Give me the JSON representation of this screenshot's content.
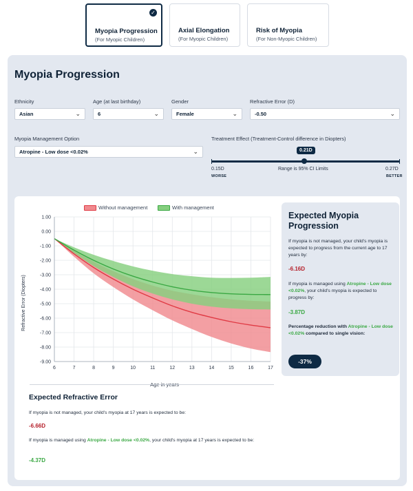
{
  "tabs": [
    {
      "title": "Myopia Progression",
      "subtitle": "(For Myopic Children)",
      "active": true
    },
    {
      "title": "Axial Elongation",
      "subtitle": "(For Myopic Children)",
      "active": false
    },
    {
      "title": "Risk of Myopia",
      "subtitle": "(For Non-Myopic Children)",
      "active": false
    }
  ],
  "panel": {
    "title": "Myopia Progression"
  },
  "fields": {
    "ethnicity": {
      "label": "Ethnicity",
      "value": "Asian"
    },
    "age": {
      "label": "Age (at last birthday)",
      "value": "6"
    },
    "gender": {
      "label": "Gender",
      "value": "Female"
    },
    "refractive_error": {
      "label": "Refractive Error (D)",
      "value": "-0.50"
    },
    "management": {
      "label": "Myopia Management Option",
      "value": "Atropine - Low dose <0.02%"
    }
  },
  "treatment_effect": {
    "label": "Treatment Effect (Treatment-Control difference in Diopters)",
    "value_label": "0.21D",
    "value": 0.21,
    "min": 0.15,
    "max": 0.27,
    "min_label": "0.15D",
    "max_label": "0.27D",
    "worse_label": "WORSE",
    "better_label": "BETTER",
    "range_text": "Range is 95% CI Limits"
  },
  "chart_data": {
    "type": "area",
    "xlabel": "Age in years",
    "ylabel": "Refractive Error (Diopters)",
    "xlim": [
      6,
      17
    ],
    "ylim": [
      -9,
      1
    ],
    "x_ticks": [
      "6",
      "7",
      "8",
      "9",
      "10",
      "11",
      "12",
      "13",
      "14",
      "15",
      "16",
      "17"
    ],
    "y_ticks": [
      "1.00",
      "0.00",
      "-1.00",
      "-2.00",
      "-3.00",
      "-4.00",
      "-5.00",
      "-6.00",
      "-7.00",
      "-8.00",
      "-9.00"
    ],
    "x": [
      6,
      7,
      8,
      9,
      10,
      11,
      12,
      13,
      14,
      15,
      16,
      17
    ],
    "series": [
      {
        "name": "Without management",
        "color": "#e03a44",
        "fill": "#f08a8f",
        "mean": [
          -0.5,
          -1.55,
          -2.5,
          -3.3,
          -4.0,
          -4.6,
          -5.15,
          -5.6,
          -5.95,
          -6.25,
          -6.48,
          -6.66
        ],
        "upper": [
          -0.5,
          -1.35,
          -2.1,
          -2.75,
          -3.3,
          -3.75,
          -4.1,
          -4.35,
          -4.55,
          -4.7,
          -4.8,
          -4.85
        ],
        "lower": [
          -0.5,
          -1.75,
          -2.9,
          -3.85,
          -4.7,
          -5.45,
          -6.15,
          -6.75,
          -7.3,
          -7.75,
          -8.1,
          -8.35
        ]
      },
      {
        "name": "With management",
        "color": "#3aa843",
        "fill": "#86cf7f",
        "mean": [
          -0.5,
          -1.3,
          -2.0,
          -2.6,
          -3.1,
          -3.5,
          -3.83,
          -4.07,
          -4.23,
          -4.32,
          -4.36,
          -4.37
        ],
        "upper": [
          -0.5,
          -1.1,
          -1.62,
          -2.05,
          -2.42,
          -2.72,
          -2.95,
          -3.1,
          -3.2,
          -3.22,
          -3.2,
          -3.15
        ],
        "lower": [
          -0.5,
          -1.5,
          -2.4,
          -3.15,
          -3.8,
          -4.3,
          -4.7,
          -5.0,
          -5.2,
          -5.32,
          -5.38,
          -5.4
        ]
      }
    ],
    "legend_position": "top",
    "grid": true
  },
  "expected": {
    "title": "Expected Myopia Progression",
    "not_managed_text": "If myopia is not managed, your child's myopia is expected to progress from the current age to 17 years by:",
    "not_managed_value": "-6.16D",
    "managed_pre": "If myopia is managed using ",
    "managed_option": "Atropine - Low dose <0.02%",
    "managed_post": ", your child's myopia is expected to progress by:",
    "managed_value": "-3.87D",
    "reduction_pre": "Percentage reduction with ",
    "reduction_option": "Atropine - Low dose <0.02%",
    "reduction_post": " compared to single vision:",
    "reduction_value": "-37%"
  },
  "refractive": {
    "title": "Expected Refractive Error",
    "not_managed_text": "If myopia is not managed, your child's myopia at 17 years is expected to be:",
    "not_managed_value": "-6.66D",
    "managed_pre": "If myopia is managed using ",
    "managed_option": "Atropine - Low dose <0.02%",
    "managed_post": ", your child's myopia at 17 years is expected to be:",
    "managed_value": "-4.37D"
  },
  "colors": {
    "navy": "#0e2a44",
    "panel_bg": "#e3e8f0",
    "red": "#b51f2a",
    "green": "#3aa843"
  }
}
